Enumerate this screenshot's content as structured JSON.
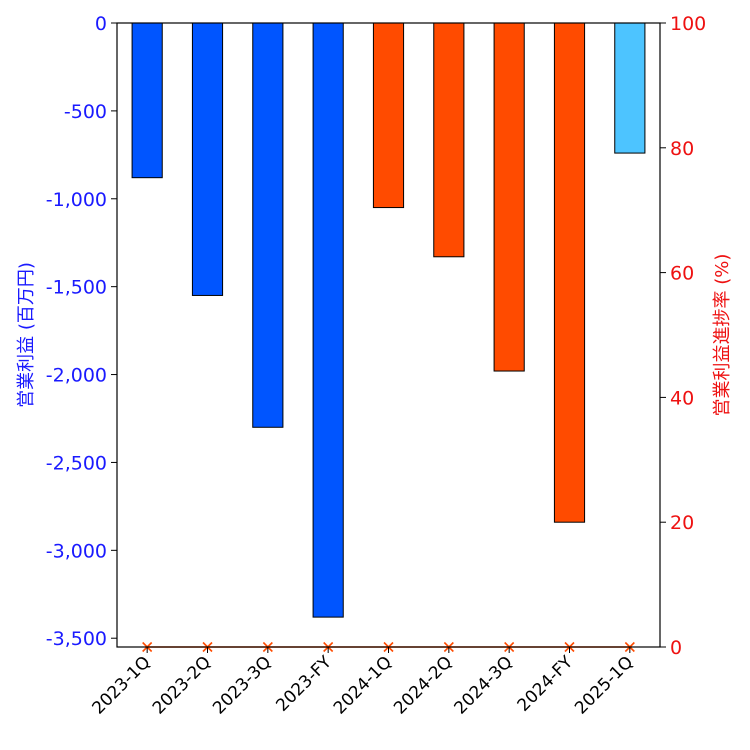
{
  "chart_data": {
    "type": "bar",
    "categories": [
      "2023-1Q",
      "2023-2Q",
      "2023-3Q",
      "2023-FY",
      "2024-1Q",
      "2024-2Q",
      "2024-3Q",
      "2024-FY",
      "2025-1Q"
    ],
    "series": [
      {
        "name": "営業利益",
        "values": [
          -880,
          -1550,
          -2300,
          -3380,
          -1050,
          -1330,
          -1980,
          -2840,
          -740
        ],
        "colors": [
          "#0055ff",
          "#0055ff",
          "#0055ff",
          "#0055ff",
          "#ff4b00",
          "#ff4b00",
          "#ff4b00",
          "#ff4b00",
          "#4dc4ff"
        ],
        "axis": "left"
      },
      {
        "name": "営業利益進捗率",
        "values": [
          0,
          0,
          0,
          0,
          0,
          0,
          0,
          0,
          0
        ],
        "marker": "x",
        "color": "#ff4b00",
        "axis": "right"
      }
    ],
    "y_left": {
      "label": "営業利益 (百万円)",
      "ylim": [
        -3550,
        0
      ],
      "ticks": [
        0,
        -500,
        -1000,
        -1500,
        -2000,
        -2500,
        -3000,
        -3500
      ],
      "tick_labels": [
        "0",
        "-500",
        "-1,000",
        "-1,500",
        "-2,000",
        "-2,500",
        "-3,000",
        "-3,500"
      ],
      "color": "#1a1aff"
    },
    "y_right": {
      "label": "営業利益進捗率 (%)",
      "ylim": [
        0,
        100
      ],
      "ticks": [
        0,
        20,
        40,
        60,
        80,
        100
      ],
      "tick_labels": [
        "0",
        "20",
        "40",
        "60",
        "80",
        "100"
      ],
      "color": "#ee1111"
    },
    "grid": false
  }
}
